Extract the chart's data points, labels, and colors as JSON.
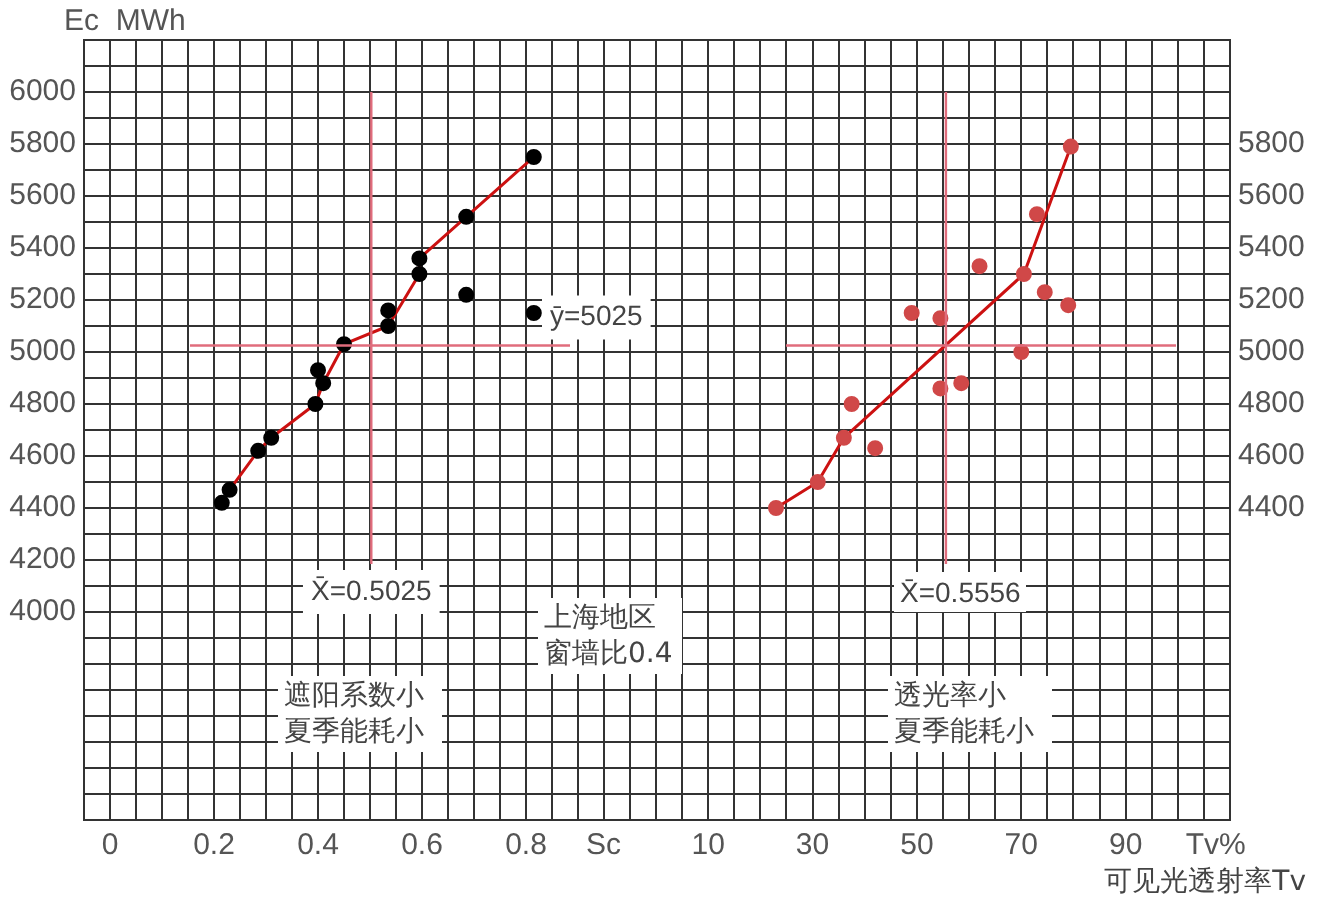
{
  "chart_data": [
    {
      "type": "scatter",
      "ylabel": "Ec  MWh",
      "xlabel": "Sc",
      "annotations": [
        "上海地区窗墙比0.4",
        "遮阳系数小夏季能耗小"
      ],
      "series": [
        {
          "color": "#000000",
          "marker": "circle",
          "x": [
            0.215,
            0.23,
            0.285,
            0.31,
            0.395,
            0.41,
            0.4,
            0.45,
            0.535,
            0.535,
            0.595,
            0.595,
            0.685,
            0.685,
            0.815,
            0.815
          ],
          "values": [
            4420,
            4470,
            4620,
            4670,
            4800,
            4880,
            4930,
            5030,
            5160,
            5100,
            5360,
            5300,
            5520,
            5220,
            5750,
            5150
          ]
        },
        {
          "type": "line",
          "color": "#cc1111",
          "marker": "none",
          "x": [
            0.23,
            0.285,
            0.31,
            0.395,
            0.41,
            0.45,
            0.535,
            0.595,
            0.595,
            0.685,
            0.815
          ],
          "values": [
            4470,
            4620,
            4670,
            4800,
            4880,
            5030,
            5100,
            5300,
            5360,
            5520,
            5750
          ]
        }
      ],
      "ref_lines": [
        {
          "axis": "x",
          "value": 0.5025,
          "label": "X̄=0.5025",
          "color": "#e06c7c"
        },
        {
          "axis": "y",
          "value": 5025,
          "label": "ȳ=5025",
          "color": "#e06c7c"
        }
      ],
      "xlim": [
        -0.05,
        1.05
      ],
      "xticks": [
        {
          "value": -0.05,
          "label": null
        },
        0,
        {
          "value": 0.05,
          "label": null
        },
        {
          "value": 0.1,
          "label": null
        },
        {
          "value": 0.15,
          "label": null
        },
        0.2,
        {
          "value": 0.25,
          "label": null
        },
        {
          "value": 0.3,
          "label": null
        },
        {
          "value": 0.35,
          "label": null
        },
        0.4,
        {
          "value": 0.45,
          "label": null
        },
        {
          "value": 0.5,
          "label": null
        },
        {
          "value": 0.55,
          "label": null
        },
        0.6,
        {
          "value": 0.65,
          "label": null
        },
        {
          "value": 0.7,
          "label": null
        },
        {
          "value": 0.75,
          "label": null
        },
        0.8,
        {
          "value": 0.85,
          "label": null
        },
        {
          "value": 0.9,
          "label": null
        },
        {
          "value": 0.95,
          "label": null
        },
        {
          "value": 1,
          "label": null
        },
        {
          "value": 1.05,
          "label": null
        }
      ],
      "ylim": [
        3200,
        6200
      ],
      "yticks": [
        {
          "value": 3300,
          "label": null
        },
        {
          "value": 3400,
          "label": null
        },
        {
          "value": 3500,
          "label": null
        },
        {
          "value": 3600,
          "label": null
        },
        {
          "value": 3700,
          "label": null
        },
        {
          "value": 3800,
          "label": null
        },
        {
          "value": 3900,
          "label": null
        },
        4000,
        {
          "value": 4100,
          "label": null
        },
        4200,
        {
          "value": 4300,
          "label": null
        },
        4400,
        {
          "value": 4500,
          "label": null
        },
        4600,
        {
          "value": 4700,
          "label": null
        },
        4800,
        {
          "value": 4900,
          "label": null
        },
        5000,
        {
          "value": 5100,
          "label": null
        },
        5200,
        {
          "value": 5300,
          "label": null
        },
        5400,
        {
          "value": 5500,
          "label": null
        },
        5600,
        {
          "value": 5700,
          "label": null
        },
        5800,
        {
          "value": 5900,
          "label": null
        },
        6000,
        {
          "value": 6100,
          "label": null
        },
        {
          "value": 6200,
          "label": null
        }
      ],
      "grid": true
    },
    {
      "type": "scatter",
      "xlabel": "Tv%",
      "annotations": [
        "透光率小夏季能耗小",
        "可见光透射率Tv",
        "X̄=0.5556"
      ],
      "series": [
        {
          "color": "#d04848",
          "marker": "circle",
          "axis": "y2",
          "x": [
            23,
            31,
            36,
            37.5,
            42,
            54.5,
            54.5,
            58.5,
            49,
            70,
            62,
            70.5,
            74.5,
            79,
            73,
            79.5
          ],
          "values": [
            4400,
            4500,
            4670,
            4800,
            4630,
            4860,
            5130,
            4880,
            5150,
            5000,
            5330,
            5300,
            5230,
            5180,
            5530,
            5790
          ]
        },
        {
          "type": "line",
          "color": "#cc1111",
          "marker": "none",
          "axis": "y2",
          "x": [
            23,
            31,
            36,
            70.5,
            79.5
          ],
          "values": [
            4400,
            4500,
            4670,
            5300,
            5790
          ]
        }
      ],
      "ref_lines": [
        {
          "axis": "x",
          "value": 55.56,
          "color": "#e06c7c"
        },
        {
          "axis": "y2",
          "value": 5025,
          "color": "#e06c7c"
        }
      ],
      "xlim": [
        0,
        110
      ],
      "xticks": [
        {
          "value": 0,
          "label": null
        },
        {
          "value": 5,
          "label": null
        },
        10,
        {
          "value": 15,
          "label": null
        },
        {
          "value": 20,
          "label": null
        },
        {
          "value": 25,
          "label": null
        },
        30,
        {
          "value": 35,
          "label": null
        },
        {
          "value": 40,
          "label": null
        },
        {
          "value": 45,
          "label": null
        },
        50,
        {
          "value": 55,
          "label": null
        },
        {
          "value": 60,
          "label": null
        },
        {
          "value": 65,
          "label": null
        },
        70,
        {
          "value": 75,
          "label": null
        },
        {
          "value": 80,
          "label": null
        },
        {
          "value": 85,
          "label": null
        },
        90,
        {
          "value": 95,
          "label": null
        },
        {
          "value": 100,
          "label": null
        },
        {
          "value": 105,
          "label": null
        },
        {
          "value": 110,
          "label": null
        }
      ],
      "y2lim": [
        3200,
        6200
      ],
      "y2ticks": [
        {
          "value": 3300,
          "label": null
        },
        {
          "value": 3400,
          "label": null
        },
        {
          "value": 3500,
          "label": null
        },
        {
          "value": 3600,
          "label": null
        },
        {
          "value": 3700,
          "label": null
        },
        {
          "value": 3800,
          "label": null
        },
        {
          "value": 3900,
          "label": null
        },
        {
          "value": 4000,
          "label": null
        },
        {
          "value": 4100,
          "label": null
        },
        {
          "value": 4200,
          "label": null
        },
        {
          "value": 4300,
          "label": null
        },
        4400,
        {
          "value": 4500,
          "label": null
        },
        4600,
        {
          "value": 4700,
          "label": null
        },
        4800,
        {
          "value": 4900,
          "label": null
        },
        5000,
        {
          "value": 5100,
          "label": null
        },
        5200,
        {
          "value": 5300,
          "label": null
        },
        5400,
        {
          "value": 5500,
          "label": null
        },
        5600,
        {
          "value": 5700,
          "label": null
        },
        5800,
        {
          "value": 5900,
          "label": null
        },
        {
          "value": 6000,
          "label": null
        },
        {
          "value": 6100,
          "label": null
        },
        {
          "value": 6200,
          "label": null
        }
      ],
      "grid": true
    }
  ]
}
